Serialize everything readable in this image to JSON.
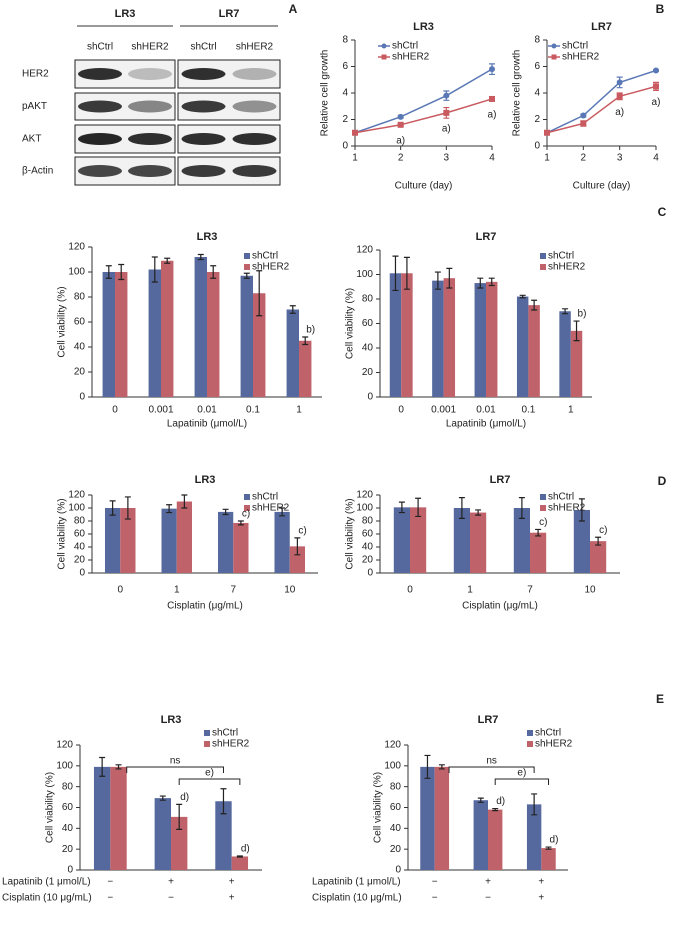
{
  "panel_labels": [
    "A",
    "B",
    "C",
    "D",
    "E"
  ],
  "blot": {
    "cell_lines": [
      "LR3",
      "LR7"
    ],
    "lanes": [
      "shCtrl",
      "shHER2",
      "shCtrl",
      "shHER2"
    ],
    "proteins": [
      "HER2",
      "pAKT",
      "AKT",
      "β-Actin"
    ]
  },
  "chart_data": [
    {
      "type": "line",
      "title": "LR3",
      "xlabel": "Culture (day)",
      "ylabel": "Relative cell growth",
      "x": [
        1,
        2,
        3,
        4
      ],
      "xlim": [
        1,
        4
      ],
      "xticks": [
        1,
        2,
        3,
        4
      ],
      "ylim": [
        0,
        8
      ],
      "yticks": [
        0,
        2,
        4,
        6,
        8
      ],
      "legend": "upper left",
      "series": [
        {
          "name": "shCtrl",
          "color": "#5a78b5",
          "marker": "circle",
          "values": [
            1.0,
            2.2,
            3.8,
            5.8
          ],
          "errors": [
            0.05,
            0.1,
            0.35,
            0.4
          ]
        },
        {
          "name": "shHER2",
          "color": "#c95a60",
          "marker": "square",
          "values": [
            1.0,
            1.6,
            2.5,
            3.55
          ],
          "errors": [
            0.05,
            0.1,
            0.4,
            0.05
          ]
        }
      ],
      "annotations": [
        {
          "text": "a)",
          "series": 1,
          "index": 1
        },
        {
          "text": "a)",
          "series": 1,
          "index": 2
        },
        {
          "text": "a)",
          "series": 1,
          "index": 3
        }
      ]
    },
    {
      "type": "line",
      "title": "LR7",
      "xlabel": "Culture (day)",
      "ylabel": "Relative cell growth",
      "x": [
        1,
        2,
        3,
        4
      ],
      "xlim": [
        1,
        4
      ],
      "xticks": [
        1,
        2,
        3,
        4
      ],
      "ylim": [
        0,
        8
      ],
      "yticks": [
        0,
        2,
        4,
        6,
        8
      ],
      "legend": "upper left",
      "series": [
        {
          "name": "shCtrl",
          "color": "#5a78b5",
          "marker": "circle",
          "values": [
            1.0,
            2.3,
            4.8,
            5.7
          ],
          "errors": [
            0.05,
            0.1,
            0.4,
            0.05
          ]
        },
        {
          "name": "shHER2",
          "color": "#c95a60",
          "marker": "square",
          "values": [
            1.0,
            1.7,
            3.75,
            4.5
          ],
          "errors": [
            0.05,
            0.2,
            0.25,
            0.3
          ]
        }
      ],
      "annotations": [
        {
          "text": "a)",
          "series": 1,
          "index": 2
        },
        {
          "text": "a)",
          "series": 1,
          "index": 3
        }
      ]
    },
    {
      "type": "bar",
      "title": "LR3",
      "xlabel": "Lapatinib (μmol/L)",
      "ylabel": "Cell viability (%)",
      "categories": [
        "0",
        "0.001",
        "0.01",
        "0.1",
        "1"
      ],
      "ylim": [
        0,
        120
      ],
      "yticks": [
        0,
        20,
        40,
        60,
        80,
        100,
        120
      ],
      "legend": "upper right",
      "series": [
        {
          "name": "shCtrl",
          "color": "#56699e",
          "values": [
            100,
            102,
            112,
            97,
            70
          ],
          "errors": [
            5,
            10,
            2,
            2,
            3
          ]
        },
        {
          "name": "shHER2",
          "color": "#c0626a",
          "values": [
            100,
            109,
            100,
            83,
            45
          ],
          "errors": [
            6,
            2,
            5,
            18,
            3
          ]
        }
      ],
      "annotations": [
        {
          "text": "b)",
          "series": 1,
          "index": 4
        }
      ]
    },
    {
      "type": "bar",
      "title": "LR7",
      "xlabel": "Lapatinib (μmol/L)",
      "ylabel": "Cell viability (%)",
      "categories": [
        "0",
        "0.001",
        "0.01",
        "0.1",
        "1"
      ],
      "ylim": [
        0,
        120
      ],
      "yticks": [
        0,
        20,
        40,
        60,
        80,
        100,
        120
      ],
      "legend": "upper right",
      "series": [
        {
          "name": "shCtrl",
          "color": "#56699e",
          "values": [
            101,
            95,
            93,
            82,
            70
          ],
          "errors": [
            14,
            7,
            4,
            1,
            2
          ]
        },
        {
          "name": "shHER2",
          "color": "#c0626a",
          "values": [
            101,
            97,
            94,
            75,
            54
          ],
          "errors": [
            13,
            8,
            3,
            4,
            8
          ]
        }
      ],
      "annotations": [
        {
          "text": "b)",
          "series": 1,
          "index": 4
        }
      ]
    },
    {
      "type": "bar",
      "title": "LR3",
      "xlabel": "Cisplatin (μg/mL)",
      "ylabel": "Cell viability (%)",
      "categories": [
        "0",
        "1",
        "7",
        "10"
      ],
      "ylim": [
        0,
        120
      ],
      "yticks": [
        0,
        20,
        40,
        60,
        80,
        100,
        120
      ],
      "legend": "upper right",
      "series": [
        {
          "name": "shCtrl",
          "color": "#56699e",
          "values": [
            100,
            99,
            94,
            94
          ],
          "errors": [
            11,
            6,
            4,
            6
          ]
        },
        {
          "name": "shHER2",
          "color": "#c0626a",
          "values": [
            100,
            110,
            77,
            41
          ],
          "errors": [
            17,
            10,
            3,
            13
          ]
        }
      ],
      "annotations": [
        {
          "text": "c)",
          "series": 1,
          "index": 2
        },
        {
          "text": "c)",
          "series": 1,
          "index": 3
        }
      ]
    },
    {
      "type": "bar",
      "title": "LR7",
      "xlabel": "Cisplatin (μg/mL)",
      "ylabel": "Cell viability (%)",
      "categories": [
        "0",
        "1",
        "7",
        "10"
      ],
      "ylim": [
        0,
        120
      ],
      "yticks": [
        0,
        20,
        40,
        60,
        80,
        100,
        120
      ],
      "legend": "upper right",
      "series": [
        {
          "name": "shCtrl",
          "color": "#56699e",
          "values": [
            101,
            100,
            100,
            97
          ],
          "errors": [
            8,
            16,
            16,
            17
          ]
        },
        {
          "name": "shHER2",
          "color": "#c0626a",
          "values": [
            101,
            93,
            62,
            49
          ],
          "errors": [
            14,
            4,
            5,
            6
          ]
        }
      ],
      "annotations": [
        {
          "text": "c)",
          "series": 1,
          "index": 2
        },
        {
          "text": "c)",
          "series": 1,
          "index": 3
        }
      ]
    },
    {
      "type": "bar",
      "title": "LR3",
      "ylabel": "Cell viability (%)",
      "ylim": [
        0,
        120
      ],
      "yticks": [
        0,
        20,
        40,
        60,
        80,
        100,
        120
      ],
      "legend": "upper right",
      "conditions": [
        {
          "name": "Lapatinib (1 μmol/L)",
          "levels": [
            "−",
            "+",
            "+"
          ]
        },
        {
          "name": "Cisplatin (10 μg/mL)",
          "levels": [
            "−",
            "−",
            "+"
          ]
        }
      ],
      "series": [
        {
          "name": "shCtrl",
          "color": "#56699e",
          "values": [
            99,
            69,
            66
          ],
          "errors": [
            9,
            2,
            12
          ]
        },
        {
          "name": "shHER2",
          "color": "#c0626a",
          "values": [
            99,
            51,
            13
          ],
          "errors": [
            2,
            12,
            0.5
          ]
        }
      ],
      "annotations": [
        {
          "text": "d)",
          "series": 1,
          "index": 1
        },
        {
          "text": "d)",
          "series": 1,
          "index": 2
        }
      ],
      "brackets": [
        {
          "text": "ns",
          "from": 0,
          "to": 2
        },
        {
          "text": "e)",
          "from": 1,
          "to": 2
        }
      ]
    },
    {
      "type": "bar",
      "title": "LR7",
      "ylabel": "Cell viability (%)",
      "ylim": [
        0,
        120
      ],
      "yticks": [
        0,
        20,
        40,
        60,
        80,
        100,
        120
      ],
      "legend": "upper right",
      "conditions": [
        {
          "name": "Lapatinib (1 μmol/L)",
          "levels": [
            "−",
            "+",
            "+"
          ]
        },
        {
          "name": "Cisplatin (10 μg/mL)",
          "levels": [
            "−",
            "−",
            "+"
          ]
        }
      ],
      "series": [
        {
          "name": "shCtrl",
          "color": "#56699e",
          "values": [
            99,
            67,
            63
          ],
          "errors": [
            11,
            2,
            10
          ]
        },
        {
          "name": "shHER2",
          "color": "#c0626a",
          "values": [
            99,
            58,
            21
          ],
          "errors": [
            2,
            1,
            1
          ]
        }
      ],
      "annotations": [
        {
          "text": "d)",
          "series": 1,
          "index": 1
        },
        {
          "text": "d)",
          "series": 1,
          "index": 2
        }
      ],
      "brackets": [
        {
          "text": "ns",
          "from": 0,
          "to": 2
        },
        {
          "text": "e)",
          "from": 1,
          "to": 2
        }
      ]
    }
  ]
}
